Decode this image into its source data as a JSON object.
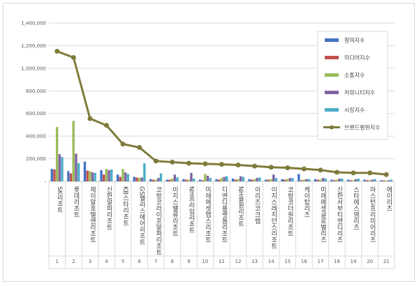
{
  "chart_data": {
    "type": "bar",
    "categories": [
      "SK리조트",
      "롯데리조트",
      "제이알호텔앤리조트",
      "신한알파리조트",
      "KB스타리조트",
      "GS팰라스에어리조트",
      "코랑코라이프알파리조트",
      "이지스밸류리조트",
      "NH프라임리조트",
      "미래에셋맵스리조트",
      "디앤디플랫폼리조트",
      "NH올원리조트",
      "이리츠코크렙",
      "이지스레지던스리조트",
      "코람코더원리조트",
      "케이탑리츠",
      "미래에셋글로벌리츠",
      "신한서부티엔디리츠",
      "스타에스엠리츠",
      "마스턴프리미어리츠",
      "에이리츠"
    ],
    "index_labels": [
      "1",
      "2",
      "3",
      "4",
      "5",
      "6",
      "7",
      "8",
      "9",
      "10",
      "11",
      "12",
      "13",
      "14",
      "15",
      "16",
      "17",
      "18",
      "19",
      "20",
      "21"
    ],
    "series": [
      {
        "name": "참여지수",
        "kind": "bar",
        "color": "#4472c4",
        "values": [
          110000,
          90000,
          175000,
          100000,
          60000,
          40000,
          20000,
          15000,
          20000,
          15000,
          20000,
          25000,
          20000,
          15000,
          20000,
          65000,
          20000,
          15000,
          15000,
          15000,
          10000
        ]
      },
      {
        "name": "미디어지수",
        "kind": "bar",
        "color": "#c0504d",
        "values": [
          105000,
          70000,
          95000,
          60000,
          40000,
          35000,
          15000,
          15000,
          15000,
          10000,
          15000,
          15000,
          15000,
          15000,
          15000,
          10000,
          15000,
          10000,
          10000,
          10000,
          8000
        ]
      },
      {
        "name": "소통지수",
        "kind": "bar",
        "color": "#9bbb59",
        "values": [
          480000,
          535000,
          90000,
          110000,
          110000,
          30000,
          15000,
          25000,
          15000,
          65000,
          30000,
          20000,
          20000,
          20000,
          20000,
          15000,
          15000,
          15000,
          10000,
          10000,
          8000
        ]
      },
      {
        "name": "커뮤니티지수",
        "kind": "bar",
        "color": "#8064a2",
        "values": [
          240000,
          245000,
          80000,
          100000,
          80000,
          35000,
          30000,
          60000,
          75000,
          50000,
          40000,
          45000,
          30000,
          60000,
          30000,
          20000,
          30000,
          25000,
          20000,
          15000,
          10000
        ]
      },
      {
        "name": "시장지수",
        "kind": "bar",
        "color": "#4bacc6",
        "values": [
          215000,
          160000,
          75000,
          105000,
          65000,
          160000,
          70000,
          35000,
          25000,
          30000,
          45000,
          40000,
          35000,
          30000,
          30000,
          20000,
          25000,
          25000,
          25000,
          20000,
          15000
        ]
      },
      {
        "name": "브랜드평판지수",
        "kind": "line",
        "color": "#7f7b3b",
        "values": [
          1150000,
          1095000,
          555000,
          495000,
          330000,
          300000,
          180000,
          170000,
          160000,
          155000,
          150000,
          145000,
          135000,
          125000,
          120000,
          110000,
          100000,
          80000,
          75000,
          75000,
          60000
        ]
      }
    ],
    "yticks": [
      "-",
      "200,000",
      "400,000",
      "600,000",
      "800,000",
      "1,000,000",
      "1,200,000",
      "1,400,000"
    ],
    "ylim": [
      0,
      1400000
    ],
    "grid": true,
    "legend": "top-right"
  }
}
